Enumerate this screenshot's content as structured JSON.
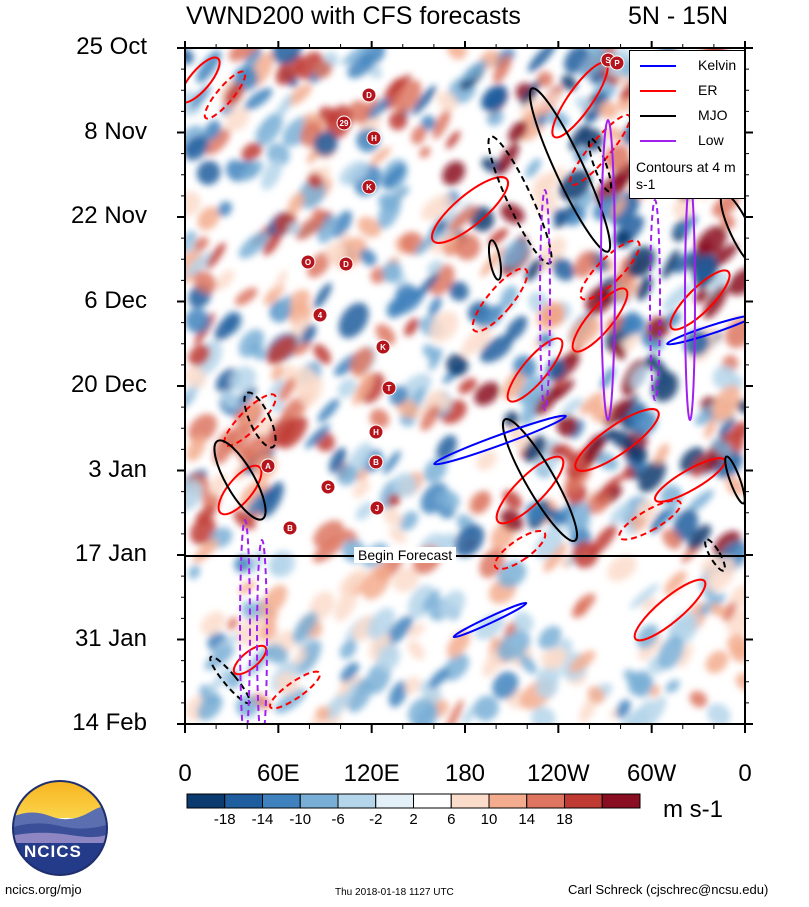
{
  "title": {
    "left": "VWND200 with CFS forecasts",
    "right": "5N - 15N"
  },
  "chart_data": {
    "type": "heatmap",
    "title": "VWND200 with CFS forecasts",
    "region": "5N - 15N",
    "y_ticks": [
      "25 Oct",
      "8 Nov",
      "22 Nov",
      "6 Dec",
      "20 Dec",
      "3 Jan",
      "17 Jan",
      "31 Jan",
      "14 Feb"
    ],
    "x_ticks": [
      "0",
      "60E",
      "120E",
      "180",
      "120W",
      "60W",
      "0"
    ],
    "xlim": [
      0,
      360
    ],
    "forecast_start": "17 Jan",
    "forecast_label": "Begin Forecast",
    "colorbar": {
      "levels": [
        "-18",
        "-14",
        "-10",
        "-6",
        "-2",
        "2",
        "6",
        "10",
        "14",
        "18"
      ],
      "colors": [
        "#0b3a6e",
        "#1e5d9e",
        "#3f82bd",
        "#79afd6",
        "#b5d5ea",
        "#e4f0f7",
        "#ffffff",
        "#fbdccb",
        "#f3ad8e",
        "#dd7560",
        "#c03a34",
        "#8a0e22"
      ],
      "units": "m s-1"
    },
    "legend": {
      "position": "top-right",
      "entries": [
        {
          "name": "Kelvin",
          "color": "#0000ff"
        },
        {
          "name": "ER",
          "color": "#ff0000"
        },
        {
          "name": "MJO",
          "color": "#000000"
        },
        {
          "name": "Low",
          "color": "#a020f0"
        }
      ],
      "note": "Contours at 4 m s-1"
    },
    "storm_labels": [
      "D",
      "29",
      "H",
      "K",
      "O",
      "D",
      "4",
      "K",
      "T",
      "H",
      "B",
      "A",
      "C",
      "J",
      "B",
      "S",
      "P"
    ]
  },
  "footer": {
    "left": "ncics.org/mjo",
    "center": "Thu 2018-01-18 1127 UTC",
    "right": "Carl Schreck (cjschrec@ncsu.edu)"
  },
  "logo": {
    "text": "NCICS"
  }
}
